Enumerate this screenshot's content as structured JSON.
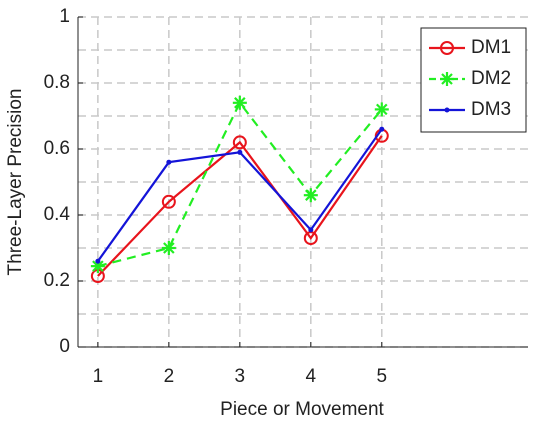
{
  "chart_data": {
    "type": "line",
    "x_label": "Piece or Movement",
    "y_label": "Three-Layer Precision",
    "x": [
      1,
      2,
      3,
      4,
      5
    ],
    "series": [
      {
        "name": "DM1",
        "color": "#e8141c",
        "marker": "o",
        "linestyle": "-",
        "values": [
          0.215,
          0.44,
          0.62,
          0.33,
          0.64
        ]
      },
      {
        "name": "DM2",
        "color": "#22ee22",
        "marker": "*",
        "linestyle": "--",
        "values": [
          0.245,
          0.3,
          0.74,
          0.46,
          0.72
        ]
      },
      {
        "name": "DM3",
        "color": "#1414d8",
        "marker": ".",
        "linestyle": "-",
        "values": [
          0.26,
          0.56,
          0.59,
          0.355,
          0.66
        ]
      }
    ],
    "xlim": [
      0.72,
      7.06
    ],
    "ylim": [
      0,
      1
    ],
    "xticks": [
      1,
      2,
      3,
      4,
      5
    ],
    "yticks": [
      0,
      0.2,
      0.4,
      0.6,
      0.8,
      1
    ],
    "grid": true,
    "minor_grid": true,
    "legend": "top-right"
  }
}
